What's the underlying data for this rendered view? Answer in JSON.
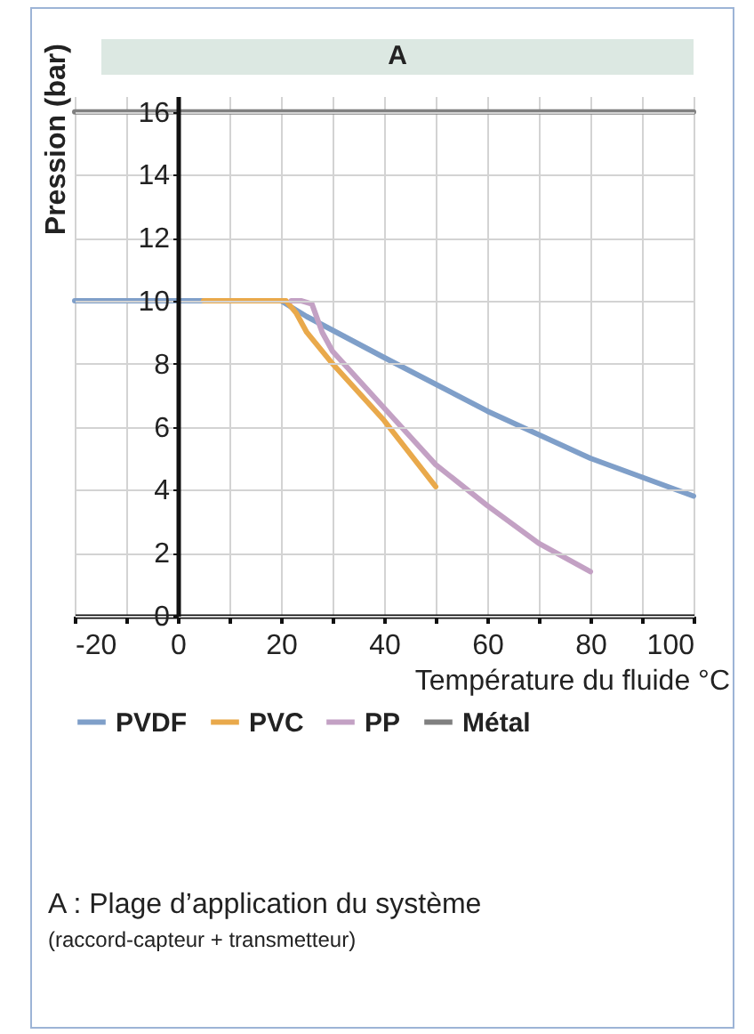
{
  "chart_data": {
    "type": "line",
    "xlabel": "Température du fluide °C",
    "ylabel": "Pression (bar)",
    "series": [
      {
        "name": "PVDF",
        "color": "#7f9fc9",
        "x": [
          -20,
          20,
          25,
          40,
          60,
          80,
          100
        ],
        "values": [
          10,
          10,
          9.5,
          8.2,
          6.5,
          5,
          3.8
        ]
      },
      {
        "name": "PVC",
        "color": "#e9a94b",
        "x": [
          5,
          21,
          23,
          25,
          30,
          40,
          50
        ],
        "values": [
          10,
          10,
          9.6,
          9,
          8,
          6.2,
          4.1
        ]
      },
      {
        "name": "PP",
        "color": "#c3a1c4",
        "x": [
          22,
          24,
          26,
          28,
          30,
          40,
          50,
          60,
          70,
          80
        ],
        "values": [
          10,
          10,
          9.9,
          9,
          8.4,
          6.6,
          4.8,
          3.5,
          2.3,
          1.4
        ]
      },
      {
        "name": "Métal",
        "color": "#808080",
        "x": [
          -20,
          100
        ],
        "values": [
          16,
          16
        ]
      }
    ],
    "xlim": [
      -20,
      100
    ],
    "ylim": [
      0,
      16.5
    ],
    "xticks": [
      -20,
      {
        "value": -10,
        "label": null
      },
      0,
      {
        "value": 10,
        "label": null
      },
      20,
      {
        "value": 30,
        "label": null
      },
      40,
      {
        "value": 50,
        "label": null
      },
      60,
      {
        "value": 70,
        "label": null
      },
      80,
      {
        "value": 90,
        "label": null
      },
      100
    ],
    "yticks": [
      0,
      2,
      4,
      6,
      8,
      10,
      12,
      14,
      16
    ],
    "grid": true,
    "legend": "bottom",
    "marker": "none",
    "line_style": "solid",
    "annotations": [
      "A",
      "A : Plage d’application du système",
      "(raccord-capteur + transmetteur)"
    ]
  }
}
